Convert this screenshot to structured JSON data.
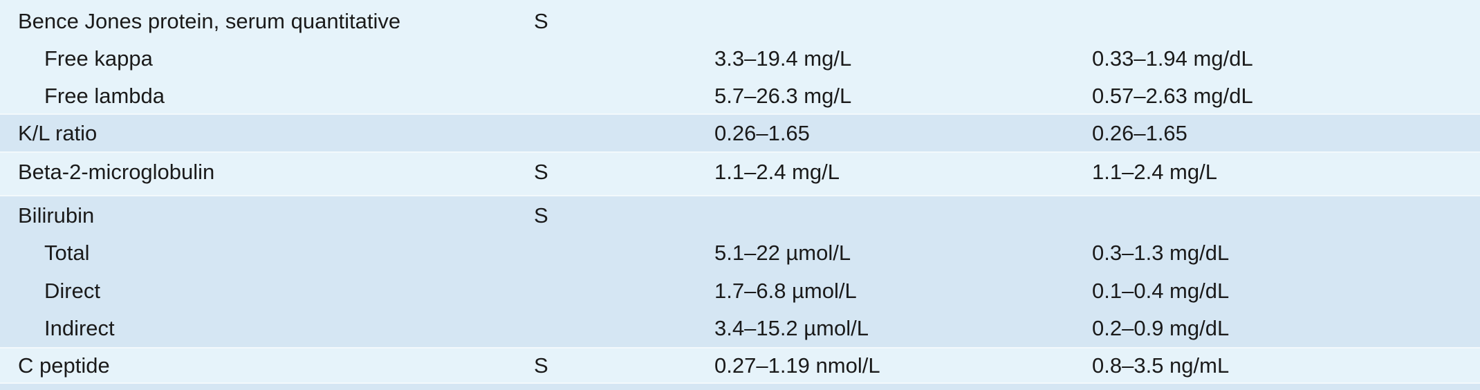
{
  "rows": [
    {
      "test": "Bence Jones protein, serum quantitative",
      "specimen": "S",
      "si": "",
      "conventional": ""
    },
    {
      "test": "Free kappa",
      "specimen": "",
      "si": "3.3–19.4 mg/L",
      "conventional": "0.33–1.94 mg/dL"
    },
    {
      "test": "Free lambda",
      "specimen": "",
      "si": "5.7–26.3 mg/L",
      "conventional": "0.57–2.63 mg/dL"
    },
    {
      "test": "K/L ratio",
      "specimen": "",
      "si": "0.26–1.65",
      "conventional": "0.26–1.65"
    },
    {
      "test": "Beta-2-microglobulin",
      "specimen": "S",
      "si": "1.1–2.4 mg/L",
      "conventional": "1.1–2.4 mg/L"
    },
    {
      "test": "Bilirubin",
      "specimen": "S",
      "si": "",
      "conventional": ""
    },
    {
      "test": "Total",
      "specimen": "",
      "si": "5.1–22 µmol/L",
      "conventional": "0.3–1.3 mg/dL"
    },
    {
      "test": "Direct",
      "specimen": "",
      "si": "1.7–6.8 µmol/L",
      "conventional": "0.1–0.4 mg/dL"
    },
    {
      "test": "Indirect",
      "specimen": "",
      "si": "3.4–15.2 µmol/L",
      "conventional": "0.2–0.9 mg/dL"
    },
    {
      "test": "C peptide",
      "specimen": "S",
      "si": "0.27–1.19 nmol/L",
      "conventional": "0.8–3.5 ng/mL"
    }
  ]
}
